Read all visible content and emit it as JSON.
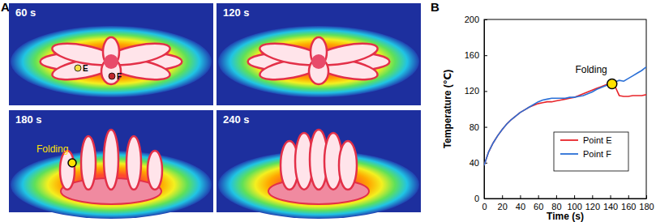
{
  "panel_a": {
    "label": "A",
    "frames": [
      "60 s",
      "120 s",
      "180 s",
      "240 s"
    ],
    "points": [
      {
        "label": "E",
        "color": "#f5e042"
      },
      {
        "label": "F",
        "color": "#c0282d"
      }
    ],
    "annotation": "Folding"
  },
  "chart_data": {
    "type": "line",
    "title": "B",
    "x_label": "Time (s)",
    "y_label": "Temperature (℃)",
    "x": [
      0,
      5,
      10,
      15,
      20,
      25,
      30,
      35,
      40,
      45,
      50,
      55,
      60,
      65,
      70,
      75,
      80,
      85,
      90,
      95,
      100,
      105,
      110,
      115,
      120,
      125,
      130,
      135,
      140,
      145,
      150,
      155,
      160,
      165,
      170,
      175,
      180
    ],
    "series": [
      {
        "name": "Point E",
        "color": "#e8242a",
        "values": [
          37,
          52,
          62,
          70,
          77,
          83,
          88,
          92,
          96,
          99,
          102,
          104,
          106,
          107,
          108,
          108,
          109,
          110,
          111,
          112,
          113,
          115,
          117,
          119,
          121,
          123,
          125,
          127,
          129,
          126,
          115,
          114,
          114,
          115,
          115,
          115,
          116
        ]
      },
      {
        "name": "Point F",
        "color": "#2a6fd6",
        "values": [
          37,
          52,
          62,
          70,
          77,
          83,
          88,
          92,
          96,
          99,
          102,
          105,
          108,
          110,
          111,
          112,
          112,
          112,
          112,
          113,
          113,
          114,
          115,
          117,
          119,
          122,
          124,
          126,
          128,
          130,
          132,
          131,
          134,
          137,
          140,
          143,
          147
        ]
      }
    ],
    "xlim": [
      0,
      180
    ],
    "xticks": [
      0,
      20,
      40,
      60,
      80,
      100,
      120,
      140,
      160,
      180
    ],
    "ylim": [
      0,
      200
    ],
    "yticks": [
      0,
      40,
      80,
      120,
      160,
      200
    ],
    "grid": false,
    "legend": "lower right",
    "annotations": [
      {
        "text": "Folding",
        "x": 142,
        "y": 128
      }
    ]
  }
}
